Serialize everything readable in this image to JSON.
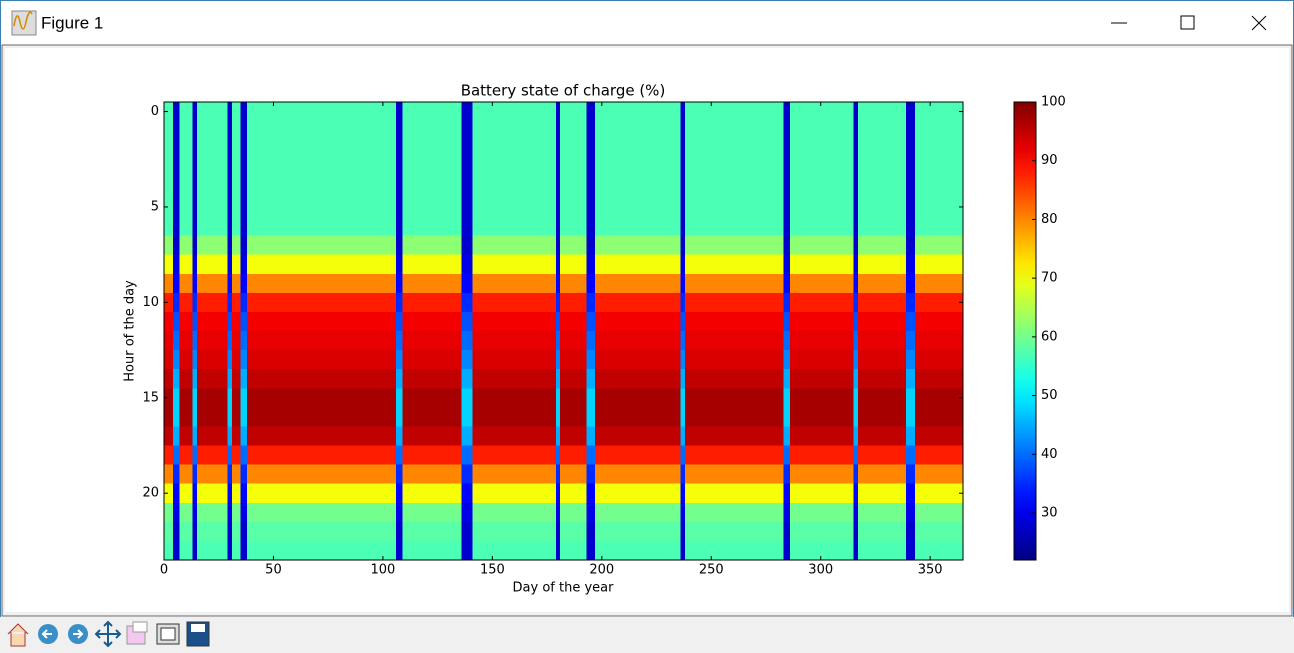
{
  "window": {
    "title": "Figure 1"
  },
  "chart_data": {
    "type": "heatmap",
    "title": "Battery state of charge (%)",
    "x_label": "Day of the year",
    "y_label": "Hour of the day",
    "colormap": "jet",
    "x_edges": [
      0,
      4,
      7,
      13,
      15,
      29,
      31,
      35,
      38,
      106,
      109,
      136,
      141,
      179,
      181,
      193,
      197,
      236,
      238,
      283,
      286,
      315,
      317,
      339,
      343,
      365
    ],
    "z": [
      [
        57,
        57,
        57,
        57,
        57,
        57,
        57,
        62,
        70,
        80,
        88,
        91,
        92,
        93,
        95,
        97,
        97,
        95,
        88,
        80,
        70,
        60,
        58,
        57
      ],
      [
        28,
        28,
        28,
        28,
        28,
        28,
        28,
        28,
        30,
        32,
        35,
        38,
        40,
        42,
        45,
        48,
        48,
        45,
        40,
        35,
        32,
        30,
        28,
        28
      ],
      [
        57,
        57,
        57,
        57,
        57,
        57,
        57,
        62,
        70,
        80,
        88,
        91,
        92,
        93,
        95,
        97,
        97,
        95,
        88,
        80,
        70,
        60,
        58,
        57
      ],
      [
        28,
        28,
        28,
        28,
        28,
        28,
        28,
        28,
        30,
        32,
        35,
        38,
        40,
        42,
        45,
        48,
        48,
        45,
        40,
        35,
        32,
        30,
        28,
        28
      ],
      [
        57,
        57,
        57,
        57,
        57,
        57,
        57,
        62,
        70,
        80,
        88,
        91,
        92,
        93,
        95,
        97,
        97,
        95,
        88,
        80,
        70,
        60,
        58,
        57
      ],
      [
        28,
        28,
        28,
        28,
        28,
        28,
        28,
        28,
        30,
        32,
        35,
        38,
        40,
        42,
        45,
        48,
        48,
        45,
        40,
        35,
        32,
        30,
        28,
        28
      ],
      [
        57,
        57,
        57,
        57,
        57,
        57,
        57,
        62,
        70,
        80,
        88,
        91,
        92,
        93,
        95,
        97,
        97,
        95,
        88,
        80,
        70,
        60,
        58,
        57
      ],
      [
        28,
        28,
        28,
        28,
        28,
        28,
        28,
        28,
        30,
        32,
        35,
        38,
        40,
        42,
        45,
        48,
        48,
        45,
        40,
        35,
        32,
        30,
        28,
        28
      ],
      [
        57,
        57,
        57,
        57,
        57,
        57,
        57,
        62,
        70,
        80,
        88,
        91,
        92,
        93,
        95,
        97,
        97,
        95,
        88,
        80,
        70,
        60,
        58,
        57
      ],
      [
        28,
        28,
        28,
        28,
        28,
        28,
        28,
        28,
        30,
        32,
        35,
        38,
        40,
        42,
        45,
        48,
        48,
        45,
        40,
        35,
        32,
        30,
        28,
        28
      ],
      [
        57,
        57,
        57,
        57,
        57,
        57,
        57,
        62,
        70,
        80,
        88,
        91,
        92,
        93,
        95,
        97,
        97,
        95,
        88,
        80,
        70,
        60,
        58,
        57
      ],
      [
        28,
        28,
        28,
        28,
        28,
        28,
        28,
        28,
        30,
        32,
        35,
        38,
        40,
        42,
        45,
        48,
        48,
        45,
        40,
        35,
        32,
        30,
        28,
        28
      ],
      [
        57,
        57,
        57,
        57,
        57,
        57,
        57,
        62,
        70,
        80,
        88,
        91,
        92,
        93,
        95,
        97,
        97,
        95,
        88,
        80,
        70,
        60,
        58,
        57
      ],
      [
        28,
        28,
        28,
        28,
        28,
        28,
        28,
        28,
        30,
        32,
        35,
        38,
        40,
        42,
        45,
        48,
        48,
        45,
        40,
        35,
        32,
        30,
        28,
        28
      ],
      [
        57,
        57,
        57,
        57,
        57,
        57,
        57,
        62,
        70,
        80,
        88,
        91,
        92,
        93,
        95,
        97,
        97,
        95,
        88,
        80,
        70,
        60,
        58,
        57
      ],
      [
        28,
        28,
        28,
        28,
        28,
        28,
        28,
        28,
        30,
        32,
        35,
        38,
        40,
        42,
        45,
        48,
        48,
        45,
        40,
        35,
        32,
        30,
        28,
        28
      ],
      [
        57,
        57,
        57,
        57,
        57,
        57,
        57,
        62,
        70,
        80,
        88,
        91,
        92,
        93,
        95,
        97,
        97,
        95,
        88,
        80,
        70,
        60,
        58,
        57
      ],
      [
        28,
        28,
        28,
        28,
        28,
        28,
        28,
        28,
        30,
        32,
        35,
        38,
        40,
        42,
        45,
        48,
        48,
        45,
        40,
        35,
        32,
        30,
        28,
        28
      ],
      [
        57,
        57,
        57,
        57,
        57,
        57,
        57,
        62,
        70,
        80,
        88,
        91,
        92,
        93,
        95,
        97,
        97,
        95,
        88,
        80,
        70,
        60,
        58,
        57
      ],
      [
        28,
        28,
        28,
        28,
        28,
        28,
        28,
        28,
        30,
        32,
        35,
        38,
        40,
        42,
        45,
        48,
        48,
        45,
        40,
        35,
        32,
        30,
        28,
        28
      ],
      [
        57,
        57,
        57,
        57,
        57,
        57,
        57,
        62,
        70,
        80,
        88,
        91,
        92,
        93,
        95,
        97,
        97,
        95,
        88,
        80,
        70,
        60,
        58,
        57
      ],
      [
        28,
        28,
        28,
        28,
        28,
        28,
        28,
        28,
        30,
        32,
        35,
        38,
        40,
        42,
        45,
        48,
        48,
        45,
        40,
        35,
        32,
        30,
        28,
        28
      ],
      [
        57,
        57,
        57,
        57,
        57,
        57,
        57,
        62,
        70,
        80,
        88,
        91,
        92,
        93,
        95,
        97,
        97,
        95,
        88,
        80,
        70,
        60,
        58,
        57
      ],
      [
        28,
        28,
        28,
        28,
        28,
        28,
        28,
        28,
        30,
        32,
        35,
        38,
        40,
        42,
        45,
        48,
        48,
        45,
        40,
        35,
        32,
        30,
        28,
        28
      ],
      [
        57,
        57,
        57,
        57,
        57,
        57,
        57,
        62,
        70,
        80,
        88,
        91,
        92,
        93,
        95,
        97,
        97,
        95,
        88,
        80,
        70,
        60,
        58,
        57
      ]
    ],
    "xlim": [
      0,
      365
    ],
    "xticks": [
      0,
      50,
      100,
      150,
      200,
      250,
      300,
      350
    ],
    "ylim": [
      23.5,
      -0.5
    ],
    "yticks": [
      0,
      5,
      10,
      15,
      20
    ],
    "clim": [
      22,
      100
    ],
    "cticks": [
      30,
      40,
      50,
      60,
      70,
      80,
      90,
      100
    ]
  }
}
